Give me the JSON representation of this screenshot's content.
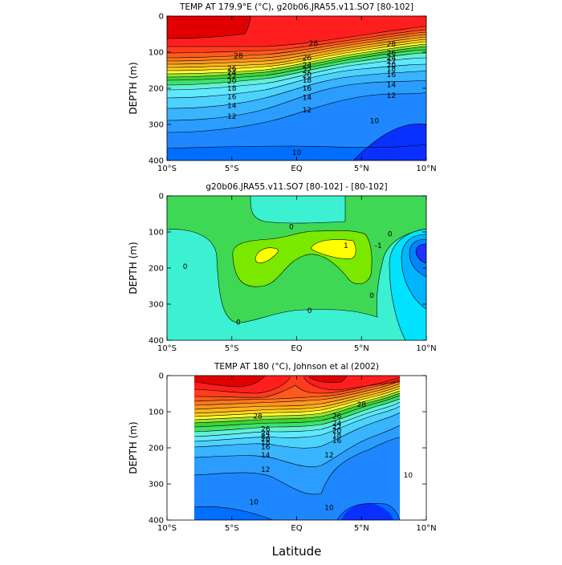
{
  "chart_data": [
    {
      "type": "contour",
      "title": "TEMP AT 179.9°E (°C), g20b06.JRA55.v11.SO7 [80-102]",
      "ylabel": "DEPTH (m)",
      "x_tick_labels": [
        "10°S",
        "5°S",
        "EQ",
        "5°N",
        "10°N"
      ],
      "x_ticks": [
        -10,
        -5,
        0,
        5,
        10
      ],
      "y_tick_labels": [
        "0",
        "100",
        "200",
        "300",
        "400"
      ],
      "y_ticks": [
        0,
        100,
        200,
        300,
        400
      ],
      "xlim": [
        -10,
        10
      ],
      "ylim": [
        400,
        0
      ],
      "data_extent": [
        -10,
        10
      ],
      "levels": [
        10,
        11,
        12,
        13,
        14,
        15,
        16,
        17,
        18,
        19,
        20,
        21,
        22,
        23,
        24,
        25,
        26,
        27,
        28,
        29
      ],
      "contour_labels": [
        {
          "x": -4.5,
          "y": 110,
          "text": "28"
        },
        {
          "x": 1.3,
          "y": 75,
          "text": "28"
        },
        {
          "x": 7.3,
          "y": 78,
          "text": "28"
        },
        {
          "x": -5.0,
          "y": 145,
          "text": "26"
        },
        {
          "x": -5.0,
          "y": 155,
          "text": "24"
        },
        {
          "x": -5.0,
          "y": 167,
          "text": "22"
        },
        {
          "x": -5.0,
          "y": 180,
          "text": "20"
        },
        {
          "x": -5.0,
          "y": 200,
          "text": "18"
        },
        {
          "x": -5.0,
          "y": 223,
          "text": "16"
        },
        {
          "x": -5.0,
          "y": 248,
          "text": "14"
        },
        {
          "x": -5.0,
          "y": 278,
          "text": "12"
        },
        {
          "x": 0.8,
          "y": 115,
          "text": "26"
        },
        {
          "x": 0.8,
          "y": 135,
          "text": "24"
        },
        {
          "x": 0.8,
          "y": 150,
          "text": "22"
        },
        {
          "x": 0.8,
          "y": 163,
          "text": "20"
        },
        {
          "x": 0.8,
          "y": 178,
          "text": "18"
        },
        {
          "x": 0.8,
          "y": 200,
          "text": "16"
        },
        {
          "x": 0.8,
          "y": 225,
          "text": "14"
        },
        {
          "x": 0.8,
          "y": 260,
          "text": "12"
        },
        {
          "x": 7.3,
          "y": 102,
          "text": "26"
        },
        {
          "x": 7.3,
          "y": 115,
          "text": "24"
        },
        {
          "x": 7.3,
          "y": 125,
          "text": "22"
        },
        {
          "x": 7.3,
          "y": 135,
          "text": "20"
        },
        {
          "x": 7.3,
          "y": 147,
          "text": "18"
        },
        {
          "x": 7.3,
          "y": 162,
          "text": "16"
        },
        {
          "x": 7.3,
          "y": 190,
          "text": "14"
        },
        {
          "x": 7.3,
          "y": 220,
          "text": "12"
        },
        {
          "x": 6.0,
          "y": 290,
          "text": "10"
        },
        {
          "x": 0.0,
          "y": 378,
          "text": "10"
        }
      ]
    },
    {
      "type": "contour",
      "title": "g20b06.JRA55.v11.SO7 [80-102]  -  [80-102]",
      "ylabel": "DEPTH (m)",
      "x_tick_labels": [
        "10°S",
        "5°S",
        "EQ",
        "5°N",
        "10°N"
      ],
      "x_ticks": [
        -10,
        -5,
        0,
        5,
        10
      ],
      "y_tick_labels": [
        "0",
        "100",
        "200",
        "300",
        "400"
      ],
      "y_ticks": [
        0,
        100,
        200,
        300,
        400
      ],
      "xlim": [
        -10,
        10
      ],
      "ylim": [
        400,
        0
      ],
      "data_extent": [
        -10,
        10
      ],
      "levels": [
        -4,
        -3,
        -2,
        -1,
        0,
        1,
        2
      ],
      "contour_labels": [
        {
          "x": -0.4,
          "y": 85,
          "text": "0"
        },
        {
          "x": -8.6,
          "y": 195,
          "text": "0"
        },
        {
          "x": -4.5,
          "y": 350,
          "text": "0"
        },
        {
          "x": 1.0,
          "y": 318,
          "text": "0"
        },
        {
          "x": 5.8,
          "y": 275,
          "text": "0"
        },
        {
          "x": 7.2,
          "y": 105,
          "text": "0"
        },
        {
          "x": 3.8,
          "y": 138,
          "text": "1"
        },
        {
          "x": 6.3,
          "y": 138,
          "text": "-1"
        }
      ]
    },
    {
      "type": "contour",
      "title": "TEMP AT 180 (°C), Johnson et al (2002)",
      "xlabel": "Latitude",
      "ylabel": "DEPTH (m)",
      "x_tick_labels": [
        "10°S",
        "5°S",
        "EQ",
        "5°N",
        "10°N"
      ],
      "x_ticks": [
        -10,
        -5,
        0,
        5,
        10
      ],
      "y_tick_labels": [
        "0",
        "100",
        "200",
        "300",
        "400"
      ],
      "y_ticks": [
        0,
        100,
        200,
        300,
        400
      ],
      "xlim": [
        -10,
        10
      ],
      "ylim": [
        400,
        0
      ],
      "data_extent": [
        -8,
        8
      ],
      "levels": [
        10,
        11,
        12,
        13,
        14,
        15,
        16,
        17,
        18,
        19,
        20,
        21,
        22,
        23,
        24,
        25,
        26,
        27,
        28,
        29
      ],
      "contour_labels": [
        {
          "x": -3.0,
          "y": 112,
          "text": "28"
        },
        {
          "x": 5.0,
          "y": 80,
          "text": "28"
        },
        {
          "x": -2.4,
          "y": 148,
          "text": "26"
        },
        {
          "x": -2.4,
          "y": 160,
          "text": "24"
        },
        {
          "x": -2.4,
          "y": 168,
          "text": "22"
        },
        {
          "x": -2.4,
          "y": 176,
          "text": "20"
        },
        {
          "x": -2.4,
          "y": 185,
          "text": "18"
        },
        {
          "x": -2.4,
          "y": 198,
          "text": "16"
        },
        {
          "x": -2.4,
          "y": 220,
          "text": "14"
        },
        {
          "x": -2.4,
          "y": 260,
          "text": "12"
        },
        {
          "x": 3.1,
          "y": 112,
          "text": "26"
        },
        {
          "x": 3.1,
          "y": 132,
          "text": "24"
        },
        {
          "x": 3.1,
          "y": 142,
          "text": "22"
        },
        {
          "x": 3.1,
          "y": 152,
          "text": "20"
        },
        {
          "x": 3.1,
          "y": 165,
          "text": "18"
        },
        {
          "x": 3.1,
          "y": 180,
          "text": "16"
        },
        {
          "x": 2.5,
          "y": 220,
          "text": "12"
        },
        {
          "x": 8.6,
          "y": 275,
          "text": "10"
        },
        {
          "x": -3.3,
          "y": 350,
          "text": "10"
        },
        {
          "x": 2.5,
          "y": 365,
          "text": "10"
        }
      ]
    }
  ]
}
